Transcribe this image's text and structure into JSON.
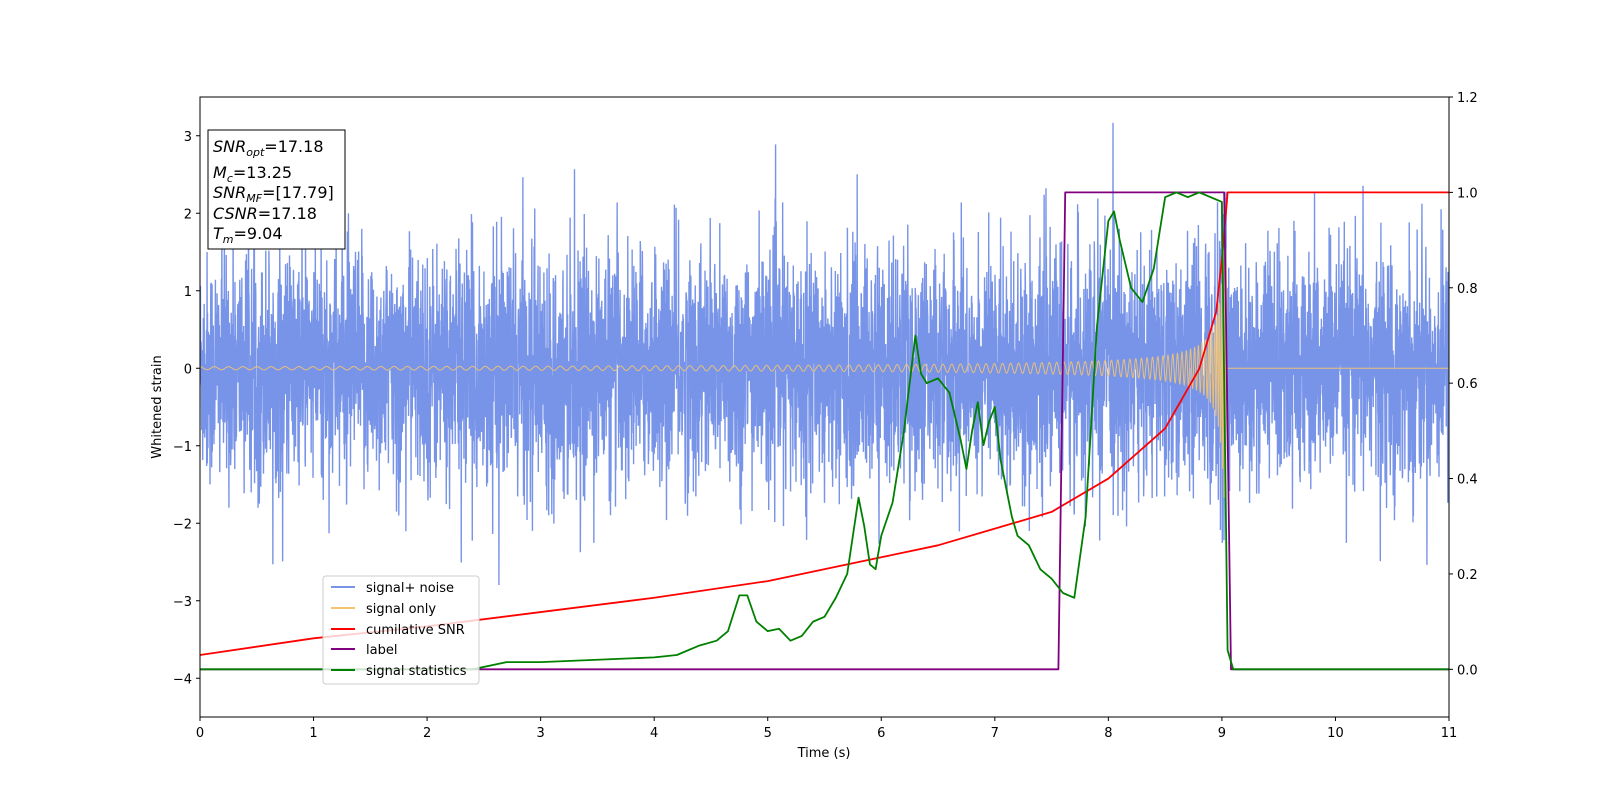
{
  "chart_data": {
    "type": "line",
    "xlabel": "Time (s)",
    "ylabel": "Whitened strain",
    "xlim": [
      0,
      11
    ],
    "ylim_left": [
      -4.5,
      3.5
    ],
    "ylim_right": [
      -0.1,
      1.2
    ],
    "x_ticks": [
      "0",
      "1",
      "2",
      "3",
      "4",
      "5",
      "6",
      "7",
      "8",
      "9",
      "10",
      "11"
    ],
    "y_ticks_left": [
      "3",
      "2",
      "1",
      "0",
      "−1",
      "−2",
      "−3",
      "−4"
    ],
    "y_ticks_right": [
      "1.2",
      "1.0",
      "0.8",
      "0.6",
      "0.4",
      "0.2",
      "0.0"
    ],
    "legend_position": "lower-left",
    "info_box": {
      "snr_opt": {
        "base": "SNR",
        "sub": "opt",
        "value": "=17.18"
      },
      "mc": {
        "base": "M",
        "sub": "c",
        "value": "=13.25"
      },
      "snr_mf": {
        "base": "SNR",
        "sub": "MF",
        "value": "=[17.79]"
      },
      "csnr": {
        "base": "CSNR",
        "value": "=17.18"
      },
      "tm": {
        "base": "T",
        "sub": "m",
        "value": "=9.04"
      }
    },
    "series": [
      {
        "name": "signal+ noise",
        "color": "#7894e8",
        "axis": "left",
        "noise_std": 0.75,
        "noise_range": [
          -4.2,
          3.2
        ],
        "x_range": [
          0,
          11
        ]
      },
      {
        "name": "signal only",
        "color": "#f5c46e",
        "axis": "left",
        "chirp_start_amp": 0.02,
        "chirp_end_amp": 1.7,
        "merger_time": 9.04
      },
      {
        "name": "cumilative SNR",
        "color": "#ff0000",
        "axis": "right",
        "x": [
          0,
          1,
          2,
          3,
          4,
          5,
          6,
          6.5,
          7,
          7.5,
          8,
          8.5,
          8.8,
          8.95,
          9.0,
          9.04,
          9.05,
          11
        ],
        "y": [
          0.03,
          0.065,
          0.09,
          0.12,
          0.15,
          0.185,
          0.235,
          0.26,
          0.295,
          0.33,
          0.4,
          0.505,
          0.63,
          0.75,
          0.86,
          0.97,
          1.0,
          1.0
        ]
      },
      {
        "name": "label",
        "color": "#800080",
        "axis": "right",
        "x": [
          0,
          7.56,
          7.62,
          9.02,
          9.08,
          11
        ],
        "y": [
          0,
          0,
          1.0,
          1.0,
          0,
          0
        ]
      },
      {
        "name": "signal statistics",
        "color": "#008000",
        "axis": "right",
        "x": [
          0,
          2.4,
          2.7,
          3.0,
          3.5,
          4.0,
          4.2,
          4.4,
          4.55,
          4.65,
          4.75,
          4.82,
          4.9,
          5.0,
          5.1,
          5.2,
          5.3,
          5.4,
          5.5,
          5.6,
          5.7,
          5.8,
          5.85,
          5.9,
          5.95,
          6.0,
          6.1,
          6.2,
          6.3,
          6.35,
          6.4,
          6.5,
          6.6,
          6.7,
          6.75,
          6.8,
          6.85,
          6.9,
          6.95,
          7.0,
          7.05,
          7.1,
          7.15,
          7.2,
          7.3,
          7.4,
          7.5,
          7.6,
          7.7,
          7.8,
          7.9,
          8.0,
          8.05,
          8.1,
          8.15,
          8.2,
          8.3,
          8.4,
          8.5,
          8.6,
          8.7,
          8.8,
          9.0,
          9.05,
          9.1,
          11
        ],
        "y": [
          0,
          0.0,
          0.015,
          0.015,
          0.02,
          0.025,
          0.03,
          0.05,
          0.06,
          0.08,
          0.155,
          0.155,
          0.1,
          0.08,
          0.085,
          0.06,
          0.07,
          0.1,
          0.11,
          0.15,
          0.2,
          0.36,
          0.3,
          0.22,
          0.21,
          0.28,
          0.35,
          0.5,
          0.7,
          0.62,
          0.6,
          0.61,
          0.58,
          0.48,
          0.42,
          0.5,
          0.56,
          0.47,
          0.52,
          0.55,
          0.44,
          0.38,
          0.32,
          0.28,
          0.26,
          0.21,
          0.19,
          0.16,
          0.15,
          0.32,
          0.72,
          0.94,
          0.96,
          0.9,
          0.85,
          0.8,
          0.77,
          0.84,
          0.99,
          1.0,
          0.99,
          1.0,
          0.98,
          0.04,
          0.0,
          0.0
        ]
      }
    ]
  }
}
